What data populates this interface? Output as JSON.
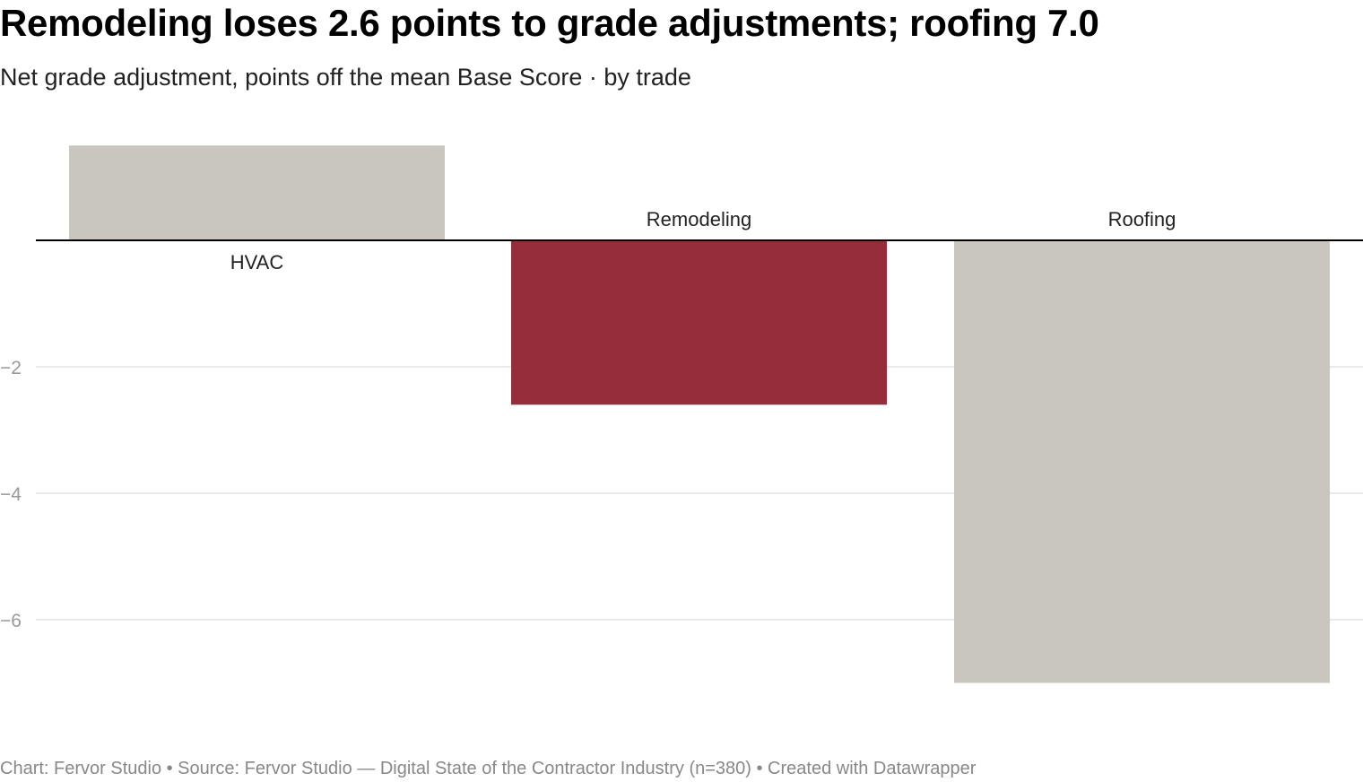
{
  "title": "Remodeling loses 2.6 points to grade adjustments; roofing 7.0",
  "subtitle": "Net grade adjustment, points off the mean Base Score · by trade",
  "footer": "Chart: Fervor Studio • Source: Fervor Studio — Digital State of the Contractor Industry (n=380) • Created with Datawrapper",
  "colors": {
    "highlight": "#952d3a",
    "neutral": "#c9c6bf",
    "gridline": "#e2e2e2",
    "baseline": "#000000",
    "tick_label": "#999999",
    "bar_label": "#222222"
  },
  "chart_data": {
    "type": "bar",
    "title": "Remodeling loses 2.6 points to grade adjustments; roofing 7.0",
    "subtitle": "Net grade adjustment, points off the mean Base Score · by trade",
    "categories": [
      "HVAC",
      "Remodeling",
      "Roofing"
    ],
    "values": [
      1.5,
      -2.6,
      -7.0
    ],
    "highlight": "Remodeling",
    "ylim": [
      -7.5,
      1.5
    ],
    "yticks": [
      -2,
      -4,
      -6
    ],
    "ytick_labels": [
      "−2",
      "−4",
      "−6"
    ],
    "grid": true,
    "legend": "none"
  }
}
